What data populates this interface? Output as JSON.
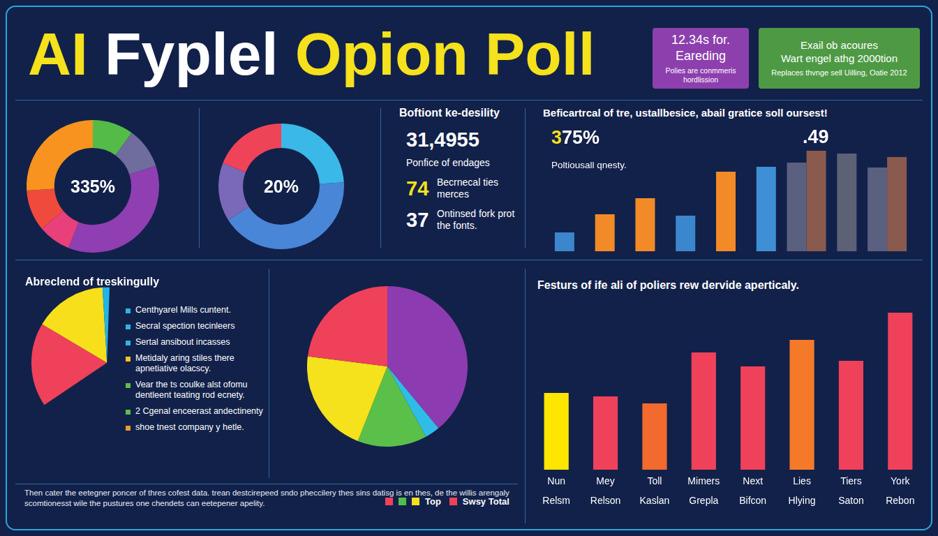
{
  "title": [
    {
      "text": "AI",
      "color": "#f5e11c"
    },
    {
      "text": "Fyplel",
      "color": "#ffffff"
    },
    {
      "text": "Opion Poll",
      "color": "#f5e11c"
    }
  ],
  "info_boxes": [
    {
      "color": "#8d3fae",
      "heading": [
        "12.34s for.",
        "Eareding"
      ],
      "text": "Polies are conmmeris hordlission"
    },
    {
      "color": "#4e9a44",
      "heading": [
        "Exail ob acoures",
        "Wart engel athg 2000tion"
      ],
      "text": "Replaces thvnge sell Uilling, Oatie 2012"
    }
  ],
  "stats": {
    "title": "Boftiont ke-desility",
    "items": [
      {
        "value": "31,4955",
        "label": "Ponfice of endages"
      },
      {
        "value": "74",
        "label": "Becrnecal ties merces",
        "color": "#f5e11c"
      },
      {
        "value": "37",
        "label": "Ontinsed fork prot the fonts."
      }
    ]
  },
  "footer": "Then cater the eetegner poncer of thres cofest data. trean destcirepeed sndo pheccilery thes sins datisg is en thes, de the willis arengaly scomtionesst wile the pustures one chendets can eetepener apelity.",
  "chart_data": [
    {
      "type": "doughnut",
      "center_label": "335%",
      "values": [
        10,
        10,
        36,
        8,
        10,
        26
      ],
      "colors": [
        "#55bb48",
        "#6f6c9e",
        "#8f3fb2",
        "#e8407a",
        "#f04a3c",
        "#f7931e"
      ]
    },
    {
      "type": "doughnut",
      "center_label": "20%",
      "values": [
        24,
        42,
        15,
        19
      ],
      "colors": [
        "#3ab8e8",
        "#4a86d8",
        "#7a68b8",
        "#ef4358"
      ]
    },
    {
      "type": "bar",
      "title": "Beficartrcal of tre, ustallbesice, abail gratice soll oursest!",
      "headline": "375%",
      "subtitle": "Poltiousall qnesty.",
      "annotation": ".49",
      "categories": [
        null,
        null,
        null,
        null,
        null,
        null,
        null,
        null,
        null
      ],
      "series": [
        {
          "values": [
            27,
            53,
            76,
            51,
            114,
            121,
            127,
            140,
            120
          ],
          "colors": [
            "#3b86cc",
            "#f28a28",
            "#f28a28",
            "#3b86cc",
            "#f28a28",
            "#3f8fd6",
            "#5b6080",
            "#5d6176",
            "#5b6080"
          ]
        },
        {
          "values": [
            null,
            null,
            null,
            null,
            null,
            null,
            144,
            null,
            135
          ],
          "color": "#8a5a4e"
        }
      ],
      "ylim": [
        0,
        150
      ],
      "grid": false,
      "tick_labels": false
    },
    {
      "type": "pie",
      "title": "Abreclend of treskingully",
      "values": [
        18,
        15.5,
        1.5
      ],
      "colors": [
        "#ef4159",
        "#f7e01b",
        "#22b4e6"
      ],
      "notes": [
        {
          "text": "Centhyarel Mills cuntent.",
          "color": "#2fb3e8"
        },
        {
          "text": "Secral spection tecinleers",
          "color": "#2fb3e8"
        },
        {
          "text": "Sertal ansibout incasses",
          "color": "#2fb3e8"
        },
        {
          "text": "Metidaly aring stiles there apnetiative olacscy.",
          "color": "#f5c61b"
        },
        {
          "text": "Vear the ts coulke alst ofomu dentleent teating rod ecnety.",
          "color": "#5bc04a"
        },
        {
          "text": "2 Cgenal enceerast andectinenty",
          "color": "#5bc04a"
        },
        {
          "text": "shoe tnest company y hetle.",
          "color": "#f29a2e"
        }
      ]
    },
    {
      "type": "pie",
      "values": [
        39,
        3,
        14,
        21,
        23
      ],
      "colors": [
        "#8d3bb0",
        "#2fbde8",
        "#5bc04a",
        "#f5e11c",
        "#ef4159"
      ]
    },
    {
      "type": "bar",
      "title": "Festurs of ife ali of poliers rew dervide aperticaly.",
      "categories": [
        [
          "Nun",
          "Relsm"
        ],
        [
          "Mey",
          "Relson"
        ],
        [
          "Toll",
          "Kaslan"
        ],
        [
          "Mimers",
          "Grepla"
        ],
        [
          "Next",
          "Bifcon"
        ],
        [
          "Lies",
          "Hlying"
        ],
        [
          "Tiers",
          "Saton"
        ],
        [
          "York",
          "Rebon"
        ]
      ],
      "values": [
        110,
        105,
        95,
        168,
        148,
        186,
        156,
        225
      ],
      "colors": [
        "#ffe600",
        "#f0415a",
        "#f26a2e",
        "#f0415a",
        "#f0415a",
        "#f47a2a",
        "#f0415a",
        "#f0415a"
      ],
      "ylim": [
        0,
        240
      ],
      "grid": false,
      "tick_labels": "x",
      "legend_items": [
        {
          "color": "#f0415a"
        },
        {
          "color": "#4fbf4a"
        },
        {
          "color": "#f5e11c",
          "text": "Top"
        },
        {
          "color": "#f0415a",
          "text": "Swsy Total"
        }
      ]
    }
  ]
}
